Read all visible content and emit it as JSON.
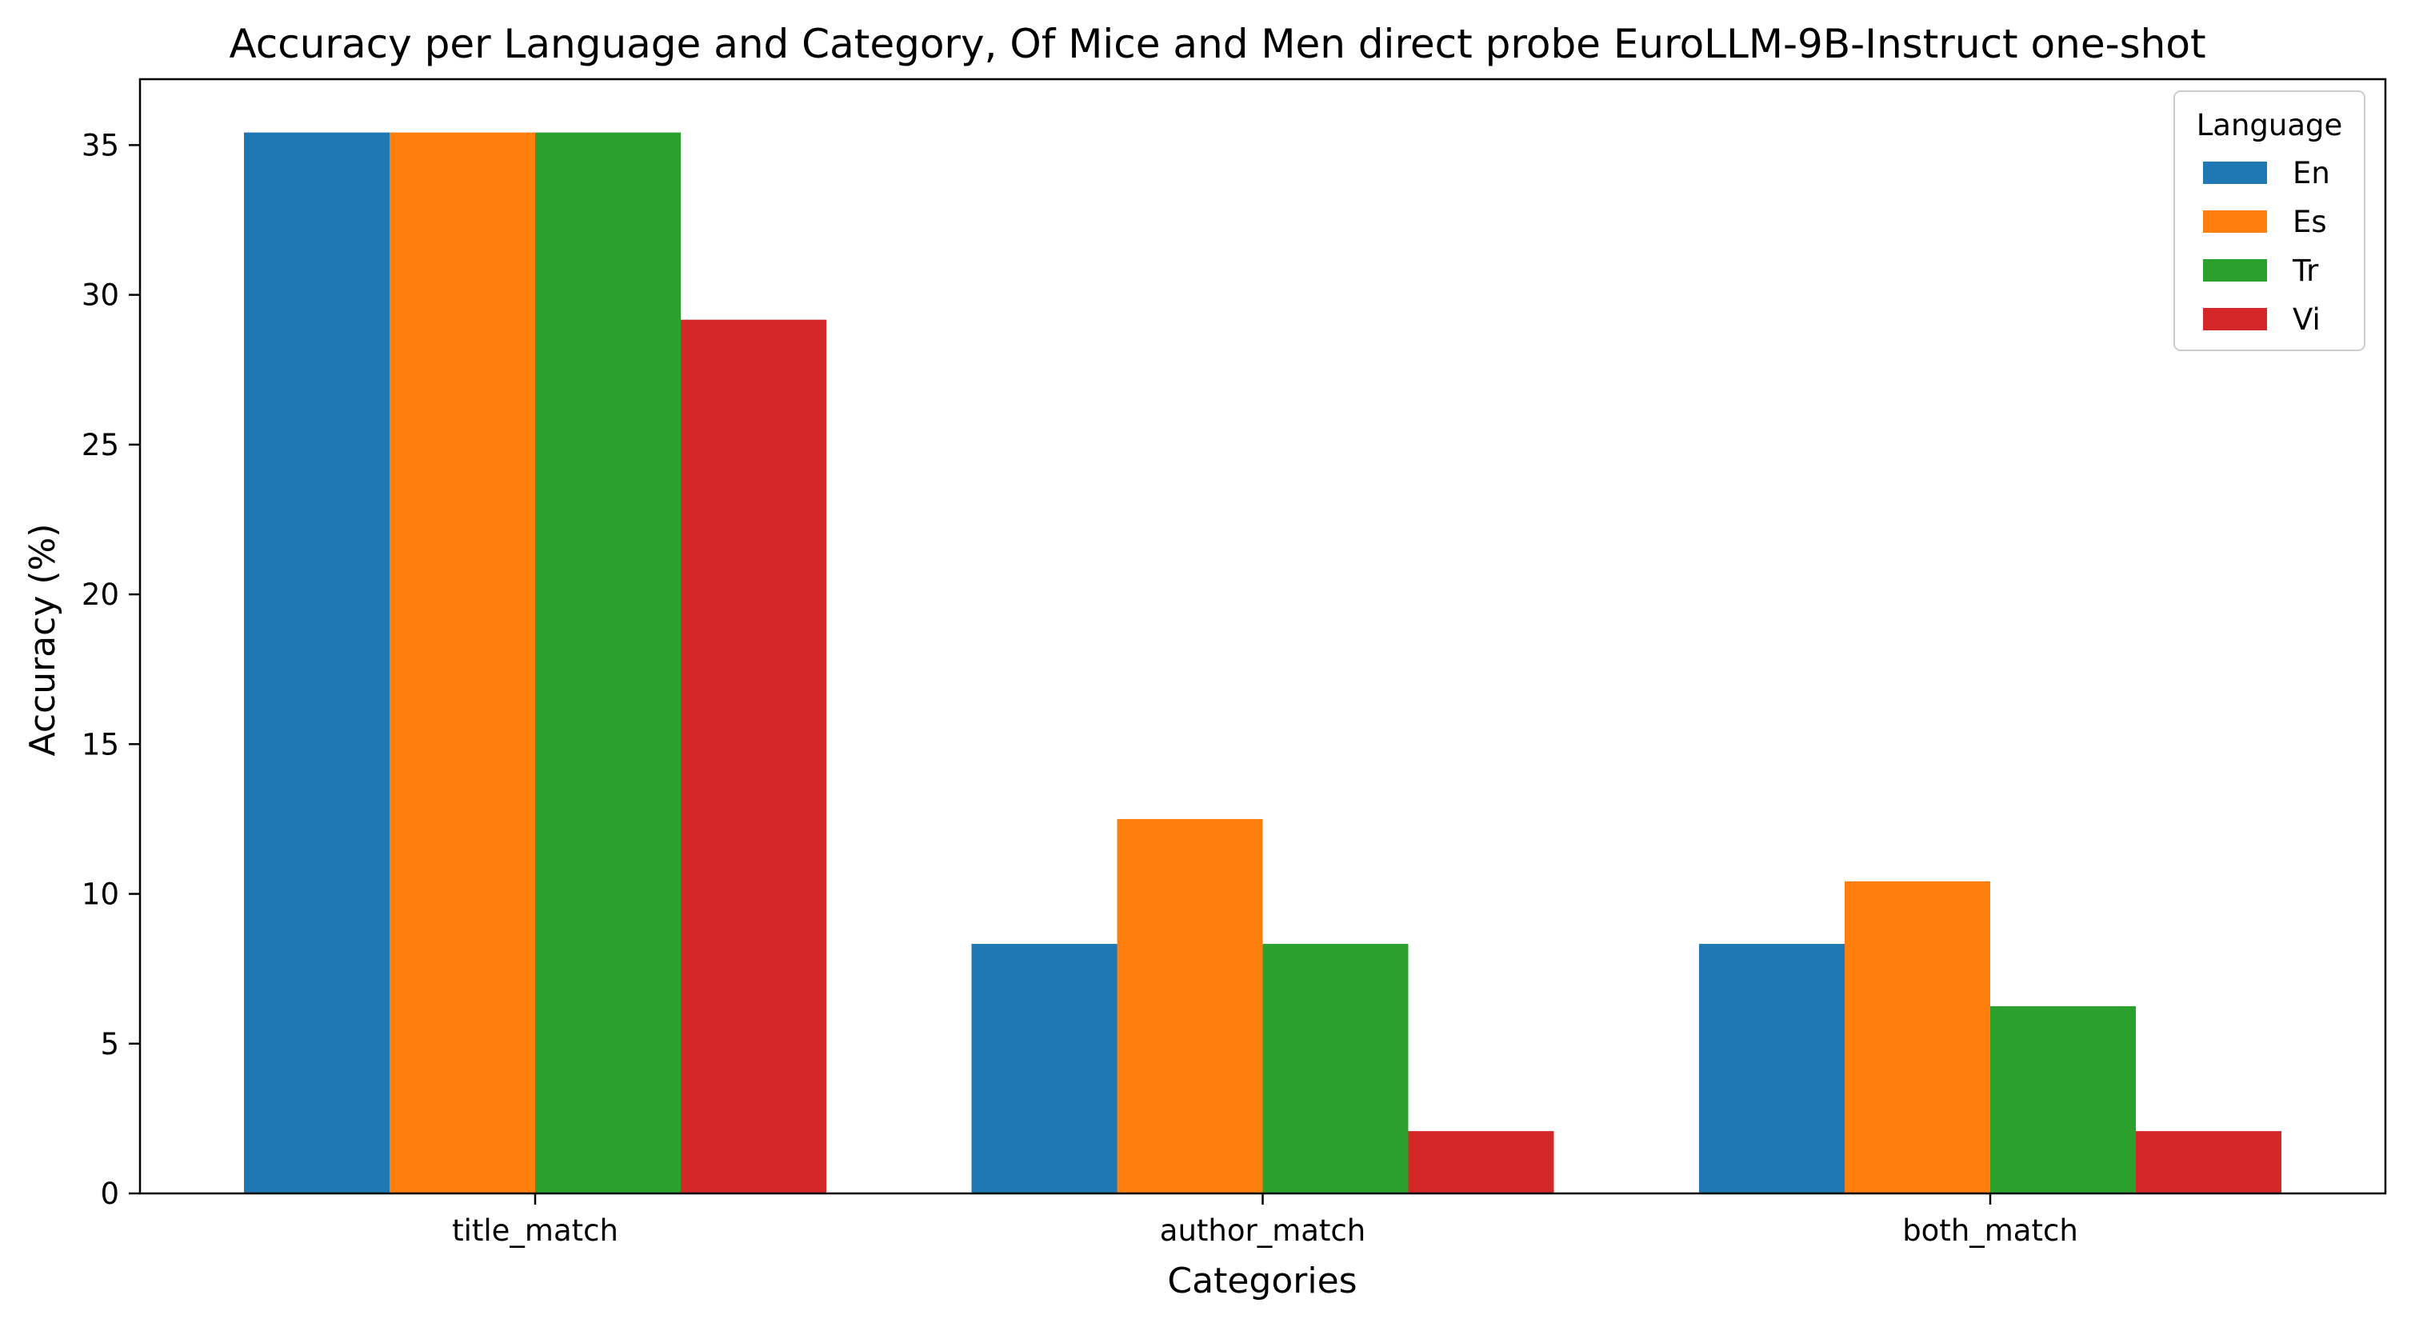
{
  "chart_data": {
    "type": "bar",
    "title": "Accuracy per Language and Category, Of Mice and Men direct probe EuroLLM-9B-Instruct one-shot",
    "xlabel": "Categories",
    "ylabel": "Accuracy (%)",
    "categories": [
      "title_match",
      "author_match",
      "both_match"
    ],
    "series": [
      {
        "name": "En",
        "color": "#1f77b4",
        "values": [
          35.42,
          8.33,
          8.33
        ]
      },
      {
        "name": "Es",
        "color": "#ff7f0e",
        "values": [
          35.42,
          12.5,
          10.42
        ]
      },
      {
        "name": "Tr",
        "color": "#2ca02c",
        "values": [
          35.42,
          8.33,
          6.25
        ]
      },
      {
        "name": "Vi",
        "color": "#d62728",
        "values": [
          29.17,
          2.08,
          2.08
        ]
      }
    ],
    "ylim": [
      0,
      37.2
    ],
    "yticks": [
      0,
      5,
      10,
      15,
      20,
      25,
      30,
      35
    ],
    "grid": false,
    "legend": {
      "title": "Language",
      "position": "top-right"
    }
  }
}
